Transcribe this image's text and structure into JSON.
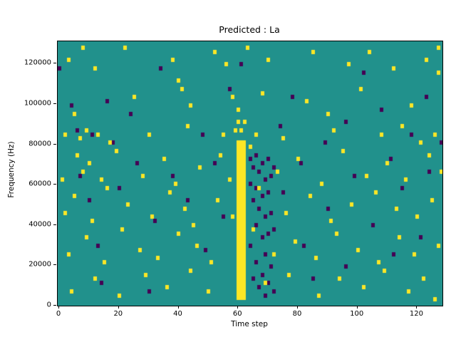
{
  "title": "Predicted : La",
  "chart_data": {
    "type": "heatmap",
    "title": "Predicted : La",
    "xlabel": "Time step",
    "ylabel": "Frequency (Hz)",
    "xlim": [
      -0.5,
      128.5
    ],
    "ylim": [
      0,
      131072
    ],
    "x_ticks": [
      0,
      20,
      40,
      60,
      80,
      100,
      120
    ],
    "y_ticks": [
      0,
      20000,
      40000,
      60000,
      80000,
      100000,
      120000
    ],
    "grid": false,
    "legend": "none",
    "colors": {
      "background": "#21918c",
      "high": "#fde725",
      "low": "#440154"
    },
    "cell": {
      "t_bins": 129,
      "f_bins": 64,
      "f_bin_hz": 2048
    },
    "yellow_band": {
      "t": [
        59.5,
        62.5
      ],
      "f": [
        3000,
        82000
      ]
    },
    "yellow_cells": [
      [
        3,
        122000
      ],
      [
        8,
        127000
      ],
      [
        12,
        118000
      ],
      [
        22,
        128000
      ],
      [
        38,
        122000
      ],
      [
        40,
        112000
      ],
      [
        52,
        126000
      ],
      [
        56,
        120000
      ],
      [
        63,
        128000
      ],
      [
        70,
        122000
      ],
      [
        85,
        126000
      ],
      [
        97,
        120000
      ],
      [
        104,
        126000
      ],
      [
        112,
        118000
      ],
      [
        123,
        122000
      ],
      [
        127,
        128000
      ],
      [
        127,
        116000
      ],
      [
        5,
        96000
      ],
      [
        25,
        104000
      ],
      [
        41,
        108000
      ],
      [
        44,
        100000
      ],
      [
        58,
        104000
      ],
      [
        60,
        98000
      ],
      [
        68,
        106000
      ],
      [
        83,
        102000
      ],
      [
        90,
        96000
      ],
      [
        101,
        108000
      ],
      [
        118,
        100000
      ],
      [
        2,
        86000
      ],
      [
        7,
        82000
      ],
      [
        9,
        88000
      ],
      [
        13,
        84000
      ],
      [
        17,
        80000
      ],
      [
        30,
        86000
      ],
      [
        43,
        90000
      ],
      [
        55,
        84000
      ],
      [
        59,
        88000
      ],
      [
        61,
        88000
      ],
      [
        60,
        92000
      ],
      [
        62,
        92000
      ],
      [
        66,
        86000
      ],
      [
        75,
        82000
      ],
      [
        92,
        88000
      ],
      [
        108,
        84000
      ],
      [
        115,
        90000
      ],
      [
        121,
        80000
      ],
      [
        126,
        86000
      ],
      [
        1,
        62000
      ],
      [
        6,
        74000
      ],
      [
        8,
        66000
      ],
      [
        10,
        70000
      ],
      [
        14,
        62000
      ],
      [
        19,
        76000
      ],
      [
        28,
        64000
      ],
      [
        35,
        72000
      ],
      [
        39,
        60000
      ],
      [
        47,
        68000
      ],
      [
        54,
        74000
      ],
      [
        57,
        62000
      ],
      [
        64,
        78000
      ],
      [
        73,
        66000
      ],
      [
        80,
        72000
      ],
      [
        88,
        60000
      ],
      [
        95,
        76000
      ],
      [
        103,
        64000
      ],
      [
        110,
        70000
      ],
      [
        116,
        62000
      ],
      [
        124,
        74000
      ],
      [
        128,
        66000
      ],
      [
        2,
        46000
      ],
      [
        5,
        54000
      ],
      [
        11,
        42000
      ],
      [
        16,
        58000
      ],
      [
        23,
        50000
      ],
      [
        31,
        44000
      ],
      [
        37,
        56000
      ],
      [
        42,
        48000
      ],
      [
        45,
        40000
      ],
      [
        53,
        52000
      ],
      [
        58,
        44000
      ],
      [
        67,
        58000
      ],
      [
        76,
        46000
      ],
      [
        84,
        54000
      ],
      [
        91,
        42000
      ],
      [
        98,
        50000
      ],
      [
        106,
        56000
      ],
      [
        113,
        48000
      ],
      [
        120,
        44000
      ],
      [
        125,
        52000
      ],
      [
        3,
        26000
      ],
      [
        9,
        34000
      ],
      [
        15,
        22000
      ],
      [
        21,
        38000
      ],
      [
        27,
        28000
      ],
      [
        33,
        24000
      ],
      [
        40,
        36000
      ],
      [
        46,
        30000
      ],
      [
        51,
        22000
      ],
      [
        65,
        38000
      ],
      [
        72,
        26000
      ],
      [
        79,
        32000
      ],
      [
        86,
        24000
      ],
      [
        93,
        36000
      ],
      [
        100,
        28000
      ],
      [
        107,
        22000
      ],
      [
        114,
        34000
      ],
      [
        119,
        26000
      ],
      [
        127,
        30000
      ],
      [
        4,
        8000
      ],
      [
        12,
        14000
      ],
      [
        20,
        6000
      ],
      [
        29,
        16000
      ],
      [
        36,
        10000
      ],
      [
        44,
        18000
      ],
      [
        50,
        8000
      ],
      [
        69,
        12000
      ],
      [
        77,
        16000
      ],
      [
        87,
        6000
      ],
      [
        94,
        14000
      ],
      [
        102,
        10000
      ],
      [
        109,
        18000
      ],
      [
        117,
        8000
      ],
      [
        122,
        14000
      ],
      [
        126,
        4000
      ]
    ],
    "purple_cells": [
      [
        64,
        72000
      ],
      [
        64,
        60000
      ],
      [
        64,
        30000
      ],
      [
        65,
        68000
      ],
      [
        65,
        52000
      ],
      [
        65,
        14000
      ],
      [
        66,
        74000
      ],
      [
        66,
        58000
      ],
      [
        66,
        40000
      ],
      [
        66,
        22000
      ],
      [
        67,
        66000
      ],
      [
        67,
        48000
      ],
      [
        67,
        10000
      ],
      [
        68,
        70000
      ],
      [
        68,
        54000
      ],
      [
        68,
        34000
      ],
      [
        68,
        16000
      ],
      [
        69,
        62000
      ],
      [
        69,
        44000
      ],
      [
        69,
        26000
      ],
      [
        69,
        6000
      ],
      [
        70,
        72000
      ],
      [
        70,
        56000
      ],
      [
        70,
        36000
      ],
      [
        70,
        12000
      ],
      [
        71,
        64000
      ],
      [
        71,
        46000
      ],
      [
        71,
        20000
      ],
      [
        72,
        68000
      ],
      [
        72,
        38000
      ],
      [
        72,
        8000
      ],
      [
        0,
        118000
      ],
      [
        4,
        100000
      ],
      [
        6,
        88000
      ],
      [
        7,
        64000
      ],
      [
        10,
        52000
      ],
      [
        11,
        86000
      ],
      [
        13,
        30000
      ],
      [
        14,
        12000
      ],
      [
        16,
        102000
      ],
      [
        18,
        80000
      ],
      [
        20,
        58000
      ],
      [
        24,
        96000
      ],
      [
        26,
        70000
      ],
      [
        30,
        8000
      ],
      [
        32,
        42000
      ],
      [
        34,
        118000
      ],
      [
        38,
        64000
      ],
      [
        43,
        52000
      ],
      [
        48,
        86000
      ],
      [
        49,
        28000
      ],
      [
        52,
        70000
      ],
      [
        55,
        44000
      ],
      [
        57,
        108000
      ],
      [
        61,
        120000
      ],
      [
        74,
        90000
      ],
      [
        75,
        56000
      ],
      [
        78,
        104000
      ],
      [
        81,
        70000
      ],
      [
        82,
        30000
      ],
      [
        85,
        14000
      ],
      [
        89,
        80000
      ],
      [
        90,
        48000
      ],
      [
        96,
        92000
      ],
      [
        96,
        20000
      ],
      [
        99,
        64000
      ],
      [
        102,
        116000
      ],
      [
        105,
        40000
      ],
      [
        108,
        98000
      ],
      [
        111,
        72000
      ],
      [
        112,
        26000
      ],
      [
        115,
        58000
      ],
      [
        118,
        86000
      ],
      [
        121,
        34000
      ],
      [
        123,
        104000
      ],
      [
        124,
        66000
      ],
      [
        128,
        80000
      ]
    ]
  }
}
